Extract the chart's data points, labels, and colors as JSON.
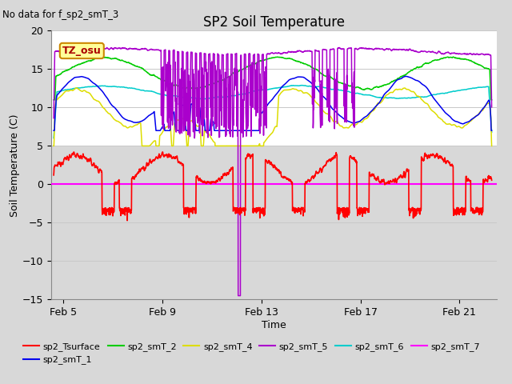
{
  "title": "SP2 Soil Temperature",
  "subtitle": "No data for f_sp2_smT_3",
  "xlabel": "Time",
  "ylabel": "Soil Temperature (C)",
  "ylim": [
    -15,
    20
  ],
  "yticks": [
    -15,
    -10,
    -5,
    0,
    5,
    10,
    15,
    20
  ],
  "xlim": [
    4.5,
    22.5
  ],
  "xtick_labels": [
    "Feb 5",
    "Feb 9",
    "Feb 13",
    "Feb 17",
    "Feb 21"
  ],
  "xtick_positions": [
    5,
    9,
    13,
    17,
    21
  ],
  "grid_color": "#c8c8c8",
  "bg_color": "#d8d8d8",
  "plot_bg_white": "#ffffff",
  "plot_bg_gray": "#d8d8d8",
  "gray_band_ymin": -15,
  "gray_band_ymax": 5,
  "annotation_text": "TZ_osu",
  "annotation_bg": "#ffff99",
  "annotation_border": "#cc8800",
  "annotation_text_color": "#aa0000",
  "zero_line_color": "#ff00ff",
  "series_colors": {
    "Tsurface": "#ff0000",
    "smT_1": "#0000ee",
    "smT_2": "#00cc00",
    "smT_4": "#dddd00",
    "smT_5": "#aa00cc",
    "smT_6": "#00cccc",
    "smT_7": "#ff00ff"
  },
  "legend_entries": [
    {
      "label": "sp2_Tsurface",
      "color": "#ff0000"
    },
    {
      "label": "sp2_smT_1",
      "color": "#0000ee"
    },
    {
      "label": "sp2_smT_2",
      "color": "#00cc00"
    },
    {
      "label": "sp2_smT_4",
      "color": "#dddd00"
    },
    {
      "label": "sp2_smT_5",
      "color": "#aa00cc"
    },
    {
      "label": "sp2_smT_6",
      "color": "#00cccc"
    },
    {
      "label": "sp2_smT_7",
      "color": "#ff00ff"
    }
  ]
}
